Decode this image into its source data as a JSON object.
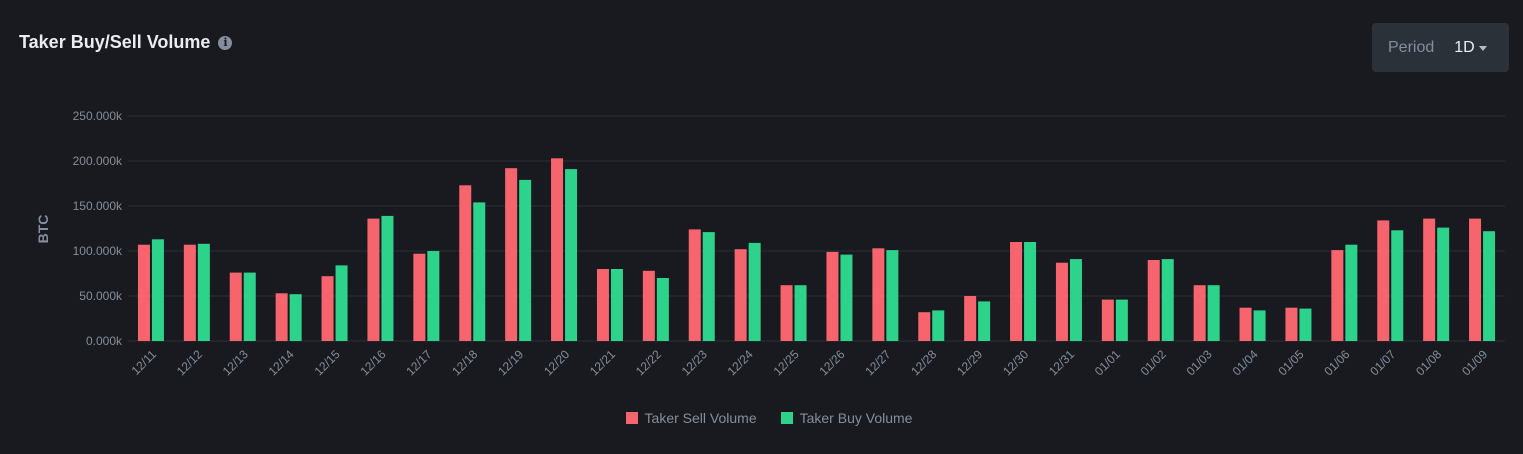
{
  "title": "Taker Buy/Sell Volume",
  "info_icon": "info-icon",
  "period": {
    "label": "Period",
    "value": "1D"
  },
  "colors": {
    "sell": "#f6656e",
    "buy": "#2ed38b",
    "grid": "#2b2f36",
    "text": "#848e9c"
  },
  "chart_data": {
    "type": "bar",
    "ylabel": "BTC",
    "xlabel": "",
    "ylim": [
      0,
      250000
    ],
    "yticks": [
      "0.000k",
      "50.000k",
      "100.000k",
      "150.000k",
      "200.000k",
      "250.000k"
    ],
    "grid": true,
    "legend_position": "bottom",
    "categories": [
      "12/11",
      "12/12",
      "12/13",
      "12/14",
      "12/15",
      "12/16",
      "12/17",
      "12/18",
      "12/19",
      "12/20",
      "12/21",
      "12/22",
      "12/23",
      "12/24",
      "12/25",
      "12/26",
      "12/27",
      "12/28",
      "12/29",
      "12/30",
      "12/31",
      "01/01",
      "01/02",
      "01/03",
      "01/04",
      "01/05",
      "01/06",
      "01/07",
      "01/08",
      "01/09"
    ],
    "series": [
      {
        "name": "Taker Sell Volume",
        "color": "#f6656e",
        "values": [
          107000,
          107000,
          76000,
          53000,
          72000,
          136000,
          97000,
          173000,
          192000,
          203000,
          80000,
          78000,
          124000,
          102000,
          62000,
          99000,
          103000,
          32000,
          50000,
          110000,
          87000,
          46000,
          90000,
          62000,
          37000,
          37000,
          101000,
          134000,
          136000,
          136000
        ]
      },
      {
        "name": "Taker Buy Volume",
        "color": "#2ed38b",
        "values": [
          113000,
          108000,
          76000,
          52000,
          84000,
          139000,
          100000,
          154000,
          179000,
          191000,
          80000,
          70000,
          121000,
          109000,
          62000,
          96000,
          101000,
          34000,
          44000,
          110000,
          91000,
          46000,
          91000,
          62000,
          34000,
          36000,
          107000,
          123000,
          126000,
          122000
        ]
      }
    ]
  }
}
